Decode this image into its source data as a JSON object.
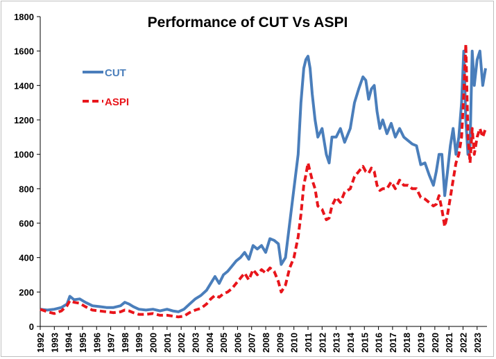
{
  "chart_data": {
    "type": "line",
    "title": "Performance of CUT Vs ASPI",
    "xlabel": "",
    "ylabel": "",
    "ylim": [
      0,
      1800
    ],
    "yticks": [
      0,
      200,
      400,
      600,
      800,
      1000,
      1200,
      1400,
      1600,
      1800
    ],
    "xlim": [
      1992,
      2023.7
    ],
    "xticks": [
      "1992",
      "1993",
      "1994",
      "1995",
      "1996",
      "1997",
      "1998",
      "1999",
      "2000",
      "2001",
      "2002",
      "2003",
      "2004",
      "2005",
      "2006",
      "2007",
      "2008",
      "2009",
      "2010",
      "2011",
      "2012",
      "2013",
      "2014",
      "2015",
      "2016",
      "2017",
      "2018",
      "2019",
      "2020",
      "2021",
      "2022",
      "2023"
    ],
    "grid": false,
    "legend_position": "top-left",
    "series": [
      {
        "name": "CUT",
        "color": "#4a7ebb",
        "style": "solid",
        "x": [
          1992.0,
          1992.5,
          1993.0,
          1993.5,
          1993.9,
          1994.1,
          1994.4,
          1994.8,
          1995.2,
          1995.7,
          1996.2,
          1996.7,
          1997.2,
          1997.7,
          1998.0,
          1998.3,
          1998.6,
          1999.0,
          1999.5,
          2000.0,
          2000.5,
          2001.0,
          2001.4,
          2001.8,
          2002.2,
          2002.6,
          2003.0,
          2003.4,
          2003.8,
          2004.1,
          2004.4,
          2004.7,
          2005.0,
          2005.3,
          2005.6,
          2005.9,
          2006.2,
          2006.5,
          2006.8,
          2007.1,
          2007.4,
          2007.7,
          2008.0,
          2008.3,
          2008.6,
          2008.9,
          2009.1,
          2009.4,
          2009.7,
          2010.0,
          2010.3,
          2010.5,
          2010.7,
          2010.85,
          2011.0,
          2011.15,
          2011.3,
          2011.5,
          2011.7,
          2012.0,
          2012.3,
          2012.5,
          2012.7,
          2013.0,
          2013.3,
          2013.6,
          2014.0,
          2014.3,
          2014.6,
          2014.9,
          2015.1,
          2015.3,
          2015.5,
          2015.7,
          2015.9,
          2016.1,
          2016.3,
          2016.6,
          2016.9,
          2017.2,
          2017.5,
          2017.8,
          2018.1,
          2018.4,
          2018.7,
          2019.0,
          2019.3,
          2019.6,
          2019.9,
          2020.1,
          2020.3,
          2020.5,
          2020.7,
          2020.9,
          2021.1,
          2021.3,
          2021.5,
          2021.7,
          2021.9,
          2022.05,
          2022.2,
          2022.35,
          2022.5,
          2022.65,
          2022.8,
          2023.0,
          2023.2,
          2023.4,
          2023.6
        ],
        "values": [
          100,
          95,
          100,
          110,
          130,
          175,
          155,
          160,
          140,
          120,
          115,
          110,
          110,
          120,
          140,
          130,
          115,
          100,
          95,
          100,
          90,
          100,
          90,
          85,
          100,
          130,
          160,
          180,
          210,
          250,
          290,
          250,
          300,
          320,
          350,
          380,
          400,
          430,
          390,
          470,
          450,
          470,
          430,
          510,
          500,
          480,
          360,
          400,
          600,
          800,
          1000,
          1300,
          1500,
          1550,
          1570,
          1500,
          1350,
          1200,
          1100,
          1150,
          1000,
          950,
          1100,
          1100,
          1150,
          1070,
          1150,
          1300,
          1380,
          1450,
          1430,
          1320,
          1380,
          1400,
          1250,
          1150,
          1200,
          1120,
          1180,
          1100,
          1150,
          1100,
          1080,
          1060,
          1050,
          940,
          950,
          880,
          820,
          900,
          1000,
          1000,
          760,
          900,
          1050,
          1150,
          1000,
          1100,
          1300,
          1600,
          1200,
          1000,
          1050,
          1600,
          1400,
          1550,
          1600,
          1400,
          1500
        ]
      },
      {
        "name": "ASPI",
        "color": "#e8151b",
        "style": "dashed",
        "x": [
          1992.0,
          1992.5,
          1993.0,
          1993.5,
          1993.9,
          1994.1,
          1994.4,
          1994.8,
          1995.2,
          1995.7,
          1996.2,
          1996.7,
          1997.2,
          1997.7,
          1998.0,
          1998.3,
          1998.6,
          1999.0,
          1999.5,
          2000.0,
          2000.5,
          2001.0,
          2001.4,
          2001.8,
          2002.2,
          2002.6,
          2003.0,
          2003.4,
          2003.8,
          2004.1,
          2004.4,
          2004.7,
          2005.0,
          2005.3,
          2005.6,
          2005.9,
          2006.2,
          2006.5,
          2006.8,
          2007.1,
          2007.4,
          2007.7,
          2008.0,
          2008.3,
          2008.6,
          2008.9,
          2009.1,
          2009.4,
          2009.7,
          2010.0,
          2010.3,
          2010.5,
          2010.7,
          2010.85,
          2011.0,
          2011.15,
          2011.3,
          2011.5,
          2011.7,
          2012.0,
          2012.3,
          2012.5,
          2012.7,
          2013.0,
          2013.3,
          2013.6,
          2014.0,
          2014.3,
          2014.6,
          2014.9,
          2015.1,
          2015.3,
          2015.5,
          2015.7,
          2015.9,
          2016.1,
          2016.3,
          2016.6,
          2016.9,
          2017.2,
          2017.5,
          2017.8,
          2018.1,
          2018.4,
          2018.7,
          2019.0,
          2019.3,
          2019.6,
          2019.9,
          2020.1,
          2020.3,
          2020.5,
          2020.7,
          2020.9,
          2021.1,
          2021.3,
          2021.5,
          2021.7,
          2021.9,
          2022.05,
          2022.2,
          2022.35,
          2022.5,
          2022.65,
          2022.8,
          2023.0,
          2023.2,
          2023.4,
          2023.6
        ],
        "values": [
          100,
          85,
          75,
          90,
          120,
          150,
          140,
          135,
          115,
          95,
          90,
          85,
          80,
          85,
          95,
          90,
          80,
          70,
          70,
          75,
          65,
          65,
          60,
          55,
          60,
          80,
          95,
          105,
          130,
          160,
          180,
          170,
          190,
          200,
          220,
          250,
          280,
          310,
          270,
          330,
          300,
          330,
          310,
          340,
          320,
          260,
          200,
          240,
          340,
          400,
          520,
          650,
          820,
          880,
          950,
          900,
          850,
          800,
          700,
          680,
          620,
          630,
          700,
          750,
          720,
          780,
          800,
          870,
          900,
          930,
          900,
          890,
          920,
          900,
          820,
          790,
          800,
          800,
          840,
          800,
          850,
          820,
          820,
          800,
          800,
          750,
          740,
          720,
          700,
          710,
          760,
          680,
          580,
          650,
          750,
          850,
          950,
          1000,
          1100,
          1350,
          1640,
          1100,
          950,
          1150,
          1000,
          1100,
          1150,
          1100,
          1150
        ]
      }
    ]
  }
}
